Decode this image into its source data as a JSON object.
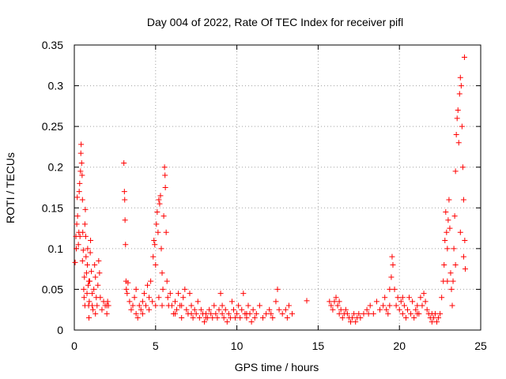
{
  "chart_data": {
    "type": "scatter",
    "title": "Day 004 of 2022, Rate Of TEC Index for receiver pifl",
    "xlabel": "GPS time / hours",
    "ylabel": "ROTI / TECUs",
    "xlim": [
      0,
      25
    ],
    "ylim": [
      0,
      0.35
    ],
    "xticks": [
      "0",
      "5",
      "10",
      "15",
      "20",
      "25"
    ],
    "yticks": [
      "0",
      "0.05",
      "0.1",
      "0.15",
      "0.2",
      "0.25",
      "0.3",
      "0.35"
    ],
    "grid": true,
    "marker": "plus",
    "marker_color": "#ff0000",
    "series": [
      {
        "points": [
          [
            0.05,
            0.083
          ],
          [
            0.1,
            0.115
          ],
          [
            0.15,
            0.13
          ],
          [
            0.18,
            0.163
          ],
          [
            0.2,
            0.14
          ],
          [
            0.25,
            0.105
          ],
          [
            0.28,
            0.12
          ],
          [
            0.3,
            0.17
          ],
          [
            0.33,
            0.18
          ],
          [
            0.38,
            0.195
          ],
          [
            0.4,
            0.217
          ],
          [
            0.42,
            0.228
          ],
          [
            0.45,
            0.205
          ],
          [
            0.48,
            0.19
          ],
          [
            0.5,
            0.16
          ],
          [
            0.52,
            0.12
          ],
          [
            0.55,
            0.098
          ],
          [
            0.58,
            0.05
          ],
          [
            0.6,
            0.04
          ],
          [
            0.62,
            0.065
          ],
          [
            0.65,
            0.13
          ],
          [
            0.68,
            0.148
          ],
          [
            0.7,
            0.115
          ],
          [
            0.72,
            0.09
          ],
          [
            0.75,
            0.07
          ],
          [
            0.78,
            0.045
          ],
          [
            0.8,
            0.08
          ],
          [
            0.82,
            0.1
          ],
          [
            0.85,
            0.055
          ],
          [
            0.88,
            0.03
          ],
          [
            0.9,
            0.015
          ],
          [
            0.92,
            0.035
          ],
          [
            0.95,
            0.06
          ],
          [
            0.98,
            0.095
          ],
          [
            1.0,
            0.11
          ],
          [
            1.05,
            0.072
          ],
          [
            1.1,
            0.045
          ],
          [
            1.15,
            0.025
          ],
          [
            1.2,
            0.05
          ],
          [
            1.25,
            0.08
          ],
          [
            1.3,
            0.065
          ],
          [
            1.35,
            0.04
          ],
          [
            1.4,
            0.03
          ],
          [
            1.45,
            0.055
          ],
          [
            1.5,
            0.085
          ],
          [
            1.55,
            0.07
          ],
          [
            1.6,
            0.04
          ],
          [
            1.7,
            0.025
          ],
          [
            1.8,
            0.035
          ],
          [
            1.9,
            0.03
          ],
          [
            2.0,
            0.02
          ],
          [
            2.05,
            0.035
          ],
          [
            2.1,
            0.03
          ],
          [
            3.05,
            0.205
          ],
          [
            3.08,
            0.17
          ],
          [
            3.1,
            0.16
          ],
          [
            3.12,
            0.135
          ],
          [
            3.15,
            0.105
          ],
          [
            3.18,
            0.06
          ],
          [
            3.2,
            0.05
          ],
          [
            3.25,
            0.045
          ],
          [
            3.3,
            0.058
          ],
          [
            3.4,
            0.035
          ],
          [
            3.5,
            0.025
          ],
          [
            3.6,
            0.03
          ],
          [
            3.7,
            0.04
          ],
          [
            3.8,
            0.02
          ],
          [
            3.9,
            0.015
          ],
          [
            4.0,
            0.03
          ],
          [
            4.1,
            0.025
          ],
          [
            4.2,
            0.035
          ],
          [
            4.3,
            0.045
          ],
          [
            4.4,
            0.03
          ],
          [
            4.5,
            0.055
          ],
          [
            4.6,
            0.04
          ],
          [
            4.7,
            0.06
          ],
          [
            4.8,
            0.035
          ],
          [
            4.85,
            0.09
          ],
          [
            4.9,
            0.11
          ],
          [
            4.95,
            0.105
          ],
          [
            5.0,
            0.08
          ],
          [
            5.05,
            0.13
          ],
          [
            5.1,
            0.145
          ],
          [
            5.15,
            0.12
          ],
          [
            5.2,
            0.16
          ],
          [
            5.25,
            0.155
          ],
          [
            5.3,
            0.165
          ],
          [
            5.35,
            0.1
          ],
          [
            5.4,
            0.07
          ],
          [
            5.45,
            0.05
          ],
          [
            5.5,
            0.14
          ],
          [
            5.55,
            0.2
          ],
          [
            5.58,
            0.19
          ],
          [
            5.6,
            0.175
          ],
          [
            5.65,
            0.12
          ],
          [
            5.7,
            0.06
          ],
          [
            5.75,
            0.04
          ],
          [
            5.8,
            0.03
          ],
          [
            5.9,
            0.045
          ],
          [
            6.0,
            0.03
          ],
          [
            6.1,
            0.02
          ],
          [
            6.2,
            0.035
          ],
          [
            6.3,
            0.025
          ],
          [
            6.4,
            0.045
          ],
          [
            6.5,
            0.03
          ],
          [
            6.6,
            0.015
          ],
          [
            6.7,
            0.04
          ],
          [
            6.8,
            0.05
          ],
          [
            6.9,
            0.025
          ],
          [
            7.0,
            0.02
          ],
          [
            7.1,
            0.045
          ],
          [
            7.2,
            0.03
          ],
          [
            7.3,
            0.015
          ],
          [
            7.4,
            0.025
          ],
          [
            7.5,
            0.02
          ],
          [
            7.6,
            0.035
          ],
          [
            7.7,
            0.015
          ],
          [
            7.8,
            0.025
          ],
          [
            7.9,
            0.02
          ],
          [
            8.0,
            0.01
          ],
          [
            8.1,
            0.02
          ],
          [
            8.2,
            0.015
          ],
          [
            8.3,
            0.025
          ],
          [
            8.4,
            0.02
          ],
          [
            8.5,
            0.015
          ],
          [
            8.6,
            0.03
          ],
          [
            8.7,
            0.02
          ],
          [
            8.8,
            0.015
          ],
          [
            8.9,
            0.025
          ],
          [
            9.0,
            0.045
          ],
          [
            9.1,
            0.02
          ],
          [
            9.2,
            0.015
          ],
          [
            9.3,
            0.025
          ],
          [
            9.4,
            0.01
          ],
          [
            9.5,
            0.02
          ],
          [
            9.6,
            0.015
          ],
          [
            9.7,
            0.035
          ],
          [
            9.8,
            0.025
          ],
          [
            9.9,
            0.015
          ],
          [
            10.0,
            0.02
          ],
          [
            10.1,
            0.03
          ],
          [
            10.2,
            0.015
          ],
          [
            10.3,
            0.025
          ],
          [
            10.4,
            0.045
          ],
          [
            10.5,
            0.02
          ],
          [
            10.6,
            0.015
          ],
          [
            10.7,
            0.03
          ],
          [
            10.8,
            0.02
          ],
          [
            10.9,
            0.01
          ],
          [
            11.0,
            0.025
          ],
          [
            11.2,
            0.02
          ],
          [
            11.4,
            0.03
          ],
          [
            11.6,
            0.015
          ],
          [
            11.8,
            0.02
          ],
          [
            12.0,
            0.025
          ],
          [
            12.2,
            0.015
          ],
          [
            12.4,
            0.035
          ],
          [
            12.5,
            0.05
          ],
          [
            12.6,
            0.025
          ],
          [
            12.8,
            0.02
          ],
          [
            13.0,
            0.025
          ],
          [
            13.2,
            0.03
          ],
          [
            13.4,
            0.02
          ],
          [
            14.3,
            0.036
          ],
          [
            15.7,
            0.035
          ],
          [
            15.8,
            0.03
          ],
          [
            15.9,
            0.025
          ],
          [
            16.0,
            0.035
          ],
          [
            16.1,
            0.04
          ],
          [
            16.2,
            0.03
          ],
          [
            16.3,
            0.035
          ],
          [
            16.4,
            0.025
          ],
          [
            16.5,
            0.015
          ],
          [
            16.6,
            0.02
          ],
          [
            16.7,
            0.025
          ],
          [
            16.8,
            0.02
          ],
          [
            16.9,
            0.015
          ],
          [
            17.0,
            0.01
          ],
          [
            17.1,
            0.015
          ],
          [
            17.2,
            0.02
          ],
          [
            17.3,
            0.01
          ],
          [
            17.4,
            0.015
          ],
          [
            17.5,
            0.02
          ],
          [
            17.6,
            0.015
          ],
          [
            17.8,
            0.02
          ],
          [
            18.0,
            0.025
          ],
          [
            18.2,
            0.03
          ],
          [
            18.4,
            0.02
          ],
          [
            18.6,
            0.035
          ],
          [
            18.8,
            0.025
          ],
          [
            19.0,
            0.03
          ],
          [
            19.1,
            0.04
          ],
          [
            19.2,
            0.025
          ],
          [
            19.3,
            0.02
          ],
          [
            19.4,
            0.05
          ],
          [
            19.5,
            0.065
          ],
          [
            19.55,
            0.09
          ],
          [
            19.6,
            0.08
          ],
          [
            19.7,
            0.05
          ],
          [
            19.8,
            0.03
          ],
          [
            19.9,
            0.04
          ],
          [
            20.0,
            0.025
          ],
          [
            20.1,
            0.035
          ],
          [
            20.2,
            0.02
          ],
          [
            20.3,
            0.03
          ],
          [
            20.4,
            0.015
          ],
          [
            20.5,
            0.025
          ],
          [
            20.6,
            0.04
          ],
          [
            20.7,
            0.02
          ],
          [
            20.8,
            0.035
          ],
          [
            20.9,
            0.015
          ],
          [
            21.0,
            0.025
          ],
          [
            21.1,
            0.03
          ],
          [
            21.2,
            0.02
          ],
          [
            21.3,
            0.04
          ],
          [
            21.4,
            0.03
          ],
          [
            21.5,
            0.045
          ],
          [
            21.6,
            0.035
          ],
          [
            21.7,
            0.025
          ],
          [
            21.8,
            0.02
          ],
          [
            21.9,
            0.015
          ],
          [
            22.0,
            0.01
          ],
          [
            22.1,
            0.015
          ],
          [
            22.2,
            0.02
          ],
          [
            22.3,
            0.01
          ],
          [
            22.4,
            0.015
          ],
          [
            22.5,
            0.02
          ],
          [
            22.6,
            0.04
          ],
          [
            22.7,
            0.06
          ],
          [
            22.75,
            0.08
          ],
          [
            22.8,
            0.11
          ],
          [
            22.85,
            0.145
          ],
          [
            22.9,
            0.12
          ],
          [
            22.95,
            0.1
          ],
          [
            23.0,
            0.135
          ],
          [
            23.05,
            0.16
          ],
          [
            23.1,
            0.125
          ],
          [
            23.15,
            0.07
          ],
          [
            23.2,
            0.05
          ],
          [
            23.25,
            0.03
          ],
          [
            23.3,
            0.06
          ],
          [
            23.35,
            0.1
          ],
          [
            23.4,
            0.14
          ],
          [
            23.45,
            0.195
          ],
          [
            23.5,
            0.24
          ],
          [
            23.55,
            0.26
          ],
          [
            23.6,
            0.27
          ],
          [
            23.65,
            0.23
          ],
          [
            23.7,
            0.29
          ],
          [
            23.75,
            0.31
          ],
          [
            23.8,
            0.3
          ],
          [
            23.85,
            0.25
          ],
          [
            23.9,
            0.2
          ],
          [
            23.95,
            0.16
          ],
          [
            24.0,
            0.335
          ],
          [
            24.02,
            0.11
          ],
          [
            24.05,
            0.075
          ],
          [
            0.12,
            0.1
          ],
          [
            0.35,
            0.115
          ],
          [
            0.5,
            0.085
          ],
          [
            0.65,
            0.03
          ],
          [
            0.9,
            0.06
          ],
          [
            1.1,
            0.03
          ],
          [
            1.3,
            0.02
          ],
          [
            2.0,
            0.03
          ],
          [
            3.8,
            0.05
          ],
          [
            4.2,
            0.02
          ],
          [
            4.6,
            0.025
          ],
          [
            5.0,
            0.03
          ],
          [
            5.2,
            0.04
          ],
          [
            5.4,
            0.03
          ],
          [
            6.2,
            0.02
          ],
          [
            6.6,
            0.03
          ],
          [
            7.2,
            0.02
          ],
          [
            8.1,
            0.015
          ],
          [
            9.1,
            0.03
          ],
          [
            10.6,
            0.02
          ],
          [
            11.1,
            0.015
          ],
          [
            12.1,
            0.02
          ],
          [
            13.1,
            0.015
          ],
          [
            16.3,
            0.02
          ],
          [
            18.1,
            0.02
          ],
          [
            19.4,
            0.03
          ],
          [
            20.2,
            0.04
          ],
          [
            21.1,
            0.02
          ],
          [
            22.0,
            0.02
          ],
          [
            22.95,
            0.06
          ],
          [
            23.45,
            0.08
          ],
          [
            23.75,
            0.12
          ],
          [
            23.95,
            0.09
          ]
        ]
      }
    ]
  }
}
